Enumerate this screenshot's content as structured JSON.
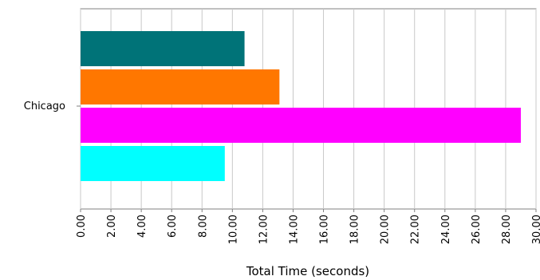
{
  "chart_data": {
    "type": "bar",
    "orientation": "horizontal",
    "categories": [
      "Chicago"
    ],
    "series": [
      {
        "values": [
          10.8
        ],
        "color": "#007378"
      },
      {
        "values": [
          13.1
        ],
        "color": "#ff7700"
      },
      {
        "values": [
          29.0
        ],
        "color": "#ff00ff"
      },
      {
        "values": [
          9.5
        ],
        "color": "#00ffff"
      }
    ],
    "xlabel": "Total Time (seconds)",
    "ylabel": "",
    "xlim": [
      0,
      30
    ],
    "xticks": [
      "0.00",
      "2.00",
      "4.00",
      "6.00",
      "8.00",
      "10.00",
      "12.00",
      "14.00",
      "16.00",
      "18.00",
      "20.00",
      "22.00",
      "24.00",
      "26.00",
      "28.00",
      "30.00"
    ],
    "grid": true,
    "legend": "none"
  }
}
